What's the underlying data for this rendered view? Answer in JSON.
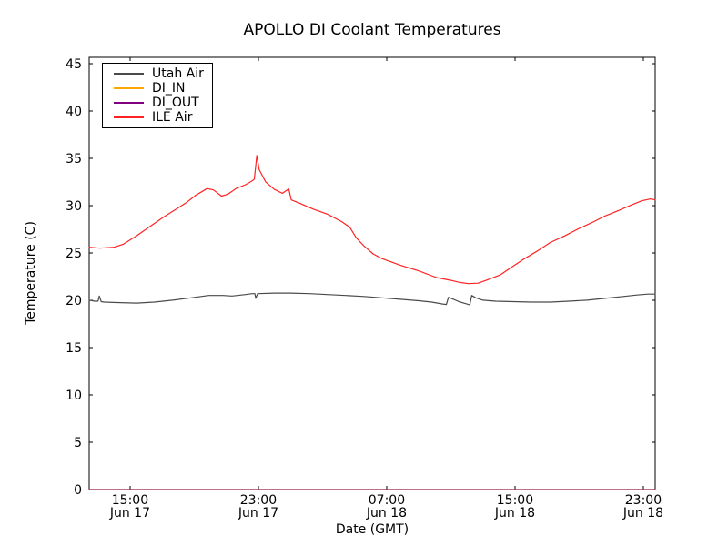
{
  "chart_data": {
    "type": "line",
    "title": "APOLLO DI Coolant Temperatures",
    "xlabel": "Date (GMT)",
    "ylabel": "Temperature (C)",
    "x_unit": "hours_since_Jun17_0000_GMT",
    "x_range": [
      12.45,
      47.74
    ],
    "ylim": [
      0,
      45.66
    ],
    "y_ticks": [
      0,
      5,
      10,
      15,
      20,
      25,
      30,
      35,
      40,
      45
    ],
    "x_ticks": [
      {
        "hour": 15,
        "line1": "15:00",
        "line2": "Jun 17"
      },
      {
        "hour": 23,
        "line1": "23:00",
        "line2": "Jun 17"
      },
      {
        "hour": 31,
        "line1": "07:00",
        "line2": "Jun 18"
      },
      {
        "hour": 39,
        "line1": "15:00",
        "line2": "Jun 18"
      },
      {
        "hour": 47,
        "line1": "23:00",
        "line2": "Jun 18"
      }
    ],
    "grid": false,
    "legend_position": "upper left",
    "axis_color": "#000000",
    "tick_direction": "in",
    "series": [
      {
        "name": "Utah Air",
        "color": "#4a4a4a",
        "opacity": 1,
        "points": [
          [
            12.45,
            20.0
          ],
          [
            12.8,
            19.9
          ],
          [
            13.0,
            19.9
          ],
          [
            13.08,
            20.45
          ],
          [
            13.2,
            19.85
          ],
          [
            13.4,
            19.8
          ],
          [
            14.2,
            19.75
          ],
          [
            15.4,
            19.7
          ],
          [
            16.5,
            19.8
          ],
          [
            17.65,
            20.0
          ],
          [
            18.8,
            20.25
          ],
          [
            19.9,
            20.5
          ],
          [
            20.8,
            20.5
          ],
          [
            21.35,
            20.45
          ],
          [
            22.2,
            20.6
          ],
          [
            22.6,
            20.7
          ],
          [
            22.78,
            20.7
          ],
          [
            22.83,
            20.2
          ],
          [
            22.95,
            20.7
          ],
          [
            24.0,
            20.75
          ],
          [
            25.0,
            20.75
          ],
          [
            26.2,
            20.7
          ],
          [
            27.3,
            20.6
          ],
          [
            28.45,
            20.5
          ],
          [
            29.6,
            20.4
          ],
          [
            30.7,
            20.25
          ],
          [
            31.85,
            20.1
          ],
          [
            33.0,
            19.95
          ],
          [
            33.8,
            19.8
          ],
          [
            34.5,
            19.6
          ],
          [
            34.72,
            19.55
          ],
          [
            34.85,
            20.3
          ],
          [
            35.1,
            20.15
          ],
          [
            35.5,
            19.85
          ],
          [
            36.0,
            19.6
          ],
          [
            36.18,
            19.5
          ],
          [
            36.3,
            20.5
          ],
          [
            36.55,
            20.25
          ],
          [
            37.0,
            20.0
          ],
          [
            37.8,
            19.9
          ],
          [
            38.9,
            19.85
          ],
          [
            40.0,
            19.8
          ],
          [
            41.2,
            19.8
          ],
          [
            42.35,
            19.9
          ],
          [
            43.5,
            20.0
          ],
          [
            44.6,
            20.2
          ],
          [
            45.75,
            20.4
          ],
          [
            46.6,
            20.55
          ],
          [
            47.3,
            20.65
          ],
          [
            47.74,
            20.65
          ]
        ]
      },
      {
        "name": "DI_IN",
        "color": "#ffa500",
        "opacity": 1,
        "points": [
          [
            12.45,
            0
          ],
          [
            47.74,
            0
          ]
        ]
      },
      {
        "name": "DI_OUT",
        "color": "#800080",
        "opacity": 0.8,
        "points": [
          [
            12.45,
            0
          ],
          [
            47.74,
            0
          ]
        ]
      },
      {
        "name": "ILE Air",
        "color": "#ff2222",
        "opacity": 1,
        "points": [
          [
            12.45,
            25.6
          ],
          [
            13.1,
            25.5
          ],
          [
            14.0,
            25.6
          ],
          [
            14.55,
            25.9
          ],
          [
            15.4,
            26.8
          ],
          [
            16.25,
            27.8
          ],
          [
            17.1,
            28.8
          ],
          [
            17.95,
            29.7
          ],
          [
            18.5,
            30.3
          ],
          [
            19.1,
            31.1
          ],
          [
            19.5,
            31.5
          ],
          [
            19.8,
            31.8
          ],
          [
            20.2,
            31.65
          ],
          [
            20.7,
            31.0
          ],
          [
            21.1,
            31.2
          ],
          [
            21.6,
            31.8
          ],
          [
            22.2,
            32.2
          ],
          [
            22.6,
            32.6
          ],
          [
            22.75,
            32.8
          ],
          [
            22.9,
            35.3
          ],
          [
            23.05,
            33.8
          ],
          [
            23.45,
            32.5
          ],
          [
            24.0,
            31.7
          ],
          [
            24.5,
            31.3
          ],
          [
            24.75,
            31.6
          ],
          [
            24.9,
            31.75
          ],
          [
            25.05,
            30.6
          ],
          [
            25.5,
            30.3
          ],
          [
            26.45,
            29.6
          ],
          [
            27.3,
            29.1
          ],
          [
            28.2,
            28.3
          ],
          [
            28.7,
            27.7
          ],
          [
            29.1,
            26.6
          ],
          [
            29.6,
            25.7
          ],
          [
            30.15,
            24.9
          ],
          [
            30.7,
            24.4
          ],
          [
            31.85,
            23.7
          ],
          [
            33.0,
            23.1
          ],
          [
            34.1,
            22.4
          ],
          [
            35.0,
            22.1
          ],
          [
            35.5,
            21.9
          ],
          [
            36.1,
            21.75
          ],
          [
            36.7,
            21.8
          ],
          [
            37.2,
            22.1
          ],
          [
            38.1,
            22.7
          ],
          [
            38.7,
            23.4
          ],
          [
            39.5,
            24.3
          ],
          [
            40.4,
            25.2
          ],
          [
            41.2,
            26.1
          ],
          [
            42.1,
            26.8
          ],
          [
            42.9,
            27.5
          ],
          [
            43.8,
            28.2
          ],
          [
            44.6,
            28.9
          ],
          [
            45.5,
            29.5
          ],
          [
            46.3,
            30.1
          ],
          [
            46.9,
            30.5
          ],
          [
            47.45,
            30.7
          ],
          [
            47.74,
            30.6
          ]
        ]
      }
    ]
  },
  "legend": {
    "items": [
      {
        "label": "Utah Air"
      },
      {
        "label": "DI_IN"
      },
      {
        "label": "DI_OUT"
      },
      {
        "label": "ILE Air"
      }
    ]
  }
}
